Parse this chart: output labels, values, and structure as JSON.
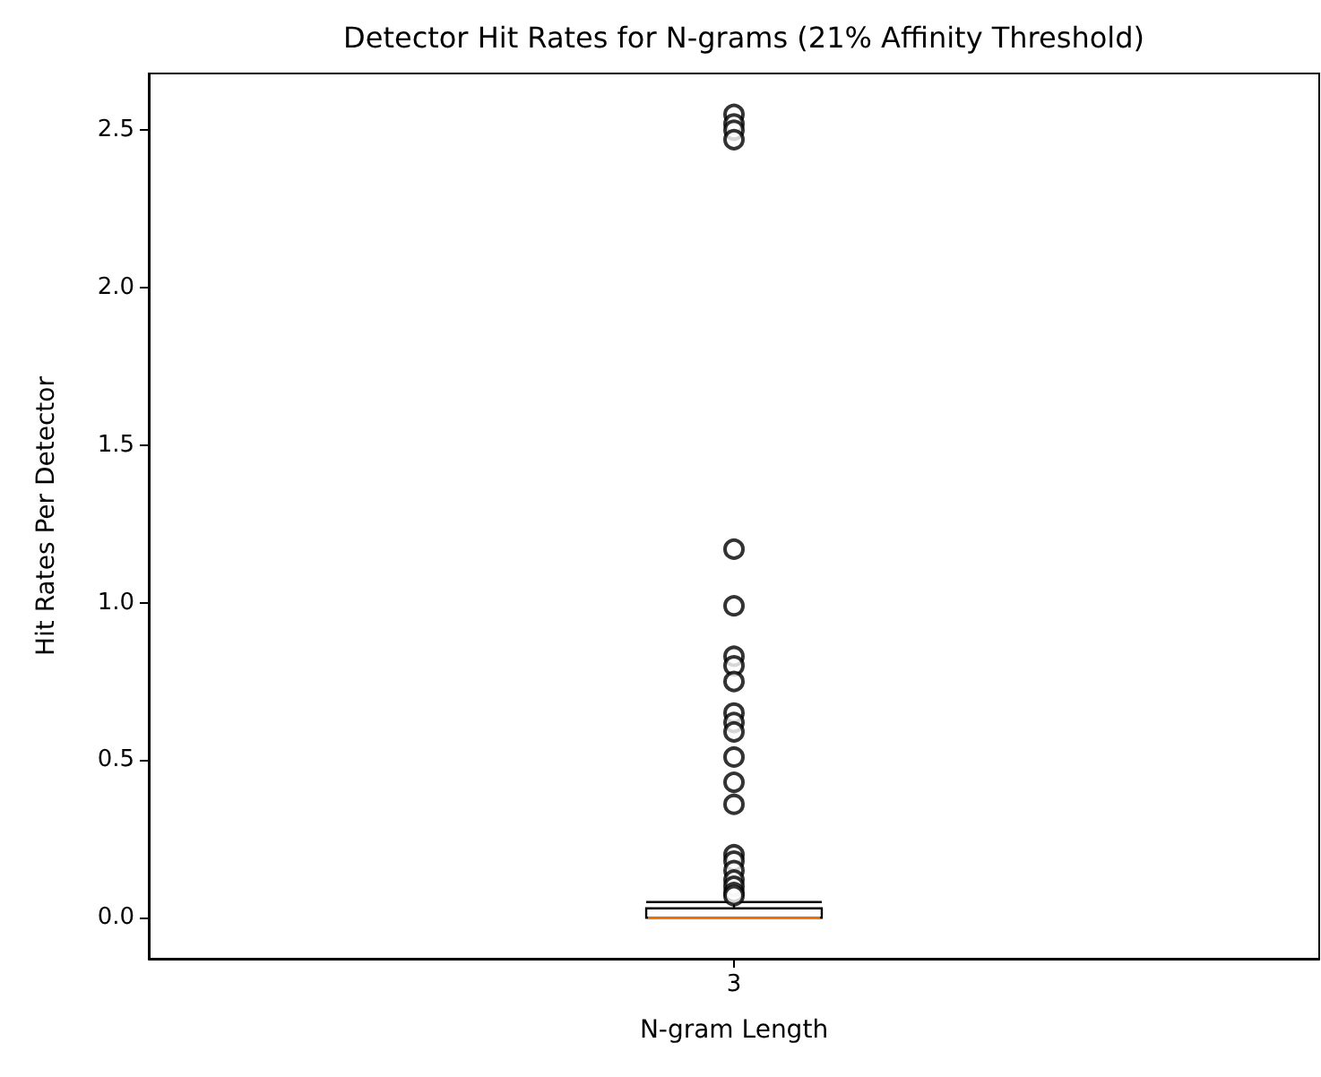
{
  "chart_data": {
    "type": "box",
    "title": "Detector Hit Rates for N-grams (21% Affinity Threshold)",
    "xlabel": "N-gram Length",
    "ylabel": "Hit Rates Per Detector",
    "categories": [
      "3"
    ],
    "series": [
      {
        "color": "#000000",
        "boxes": [
          {
            "low": 0,
            "q1": 0,
            "median": 0,
            "q3": 0.03,
            "high": 0.05,
            "outliers": [
              2.55,
              2.52,
              2.5,
              2.47,
              1.17,
              0.99,
              0.83,
              0.8,
              0.75,
              0.65,
              0.62,
              0.59,
              0.51,
              0.43,
              0.36,
              0.2,
              0.18,
              0.15,
              0.12,
              0.1,
              0.08,
              0.07
            ]
          }
        ]
      }
    ],
    "ylim": [
      -0.13,
      2.68
    ],
    "yticks": [
      {
        "value": 0,
        "label": "0.0"
      },
      0.5,
      {
        "value": 1,
        "label": "1.0"
      },
      1.5,
      {
        "value": 2,
        "label": "2.0"
      },
      2.5
    ],
    "grid": false,
    "marker": "circle"
  }
}
